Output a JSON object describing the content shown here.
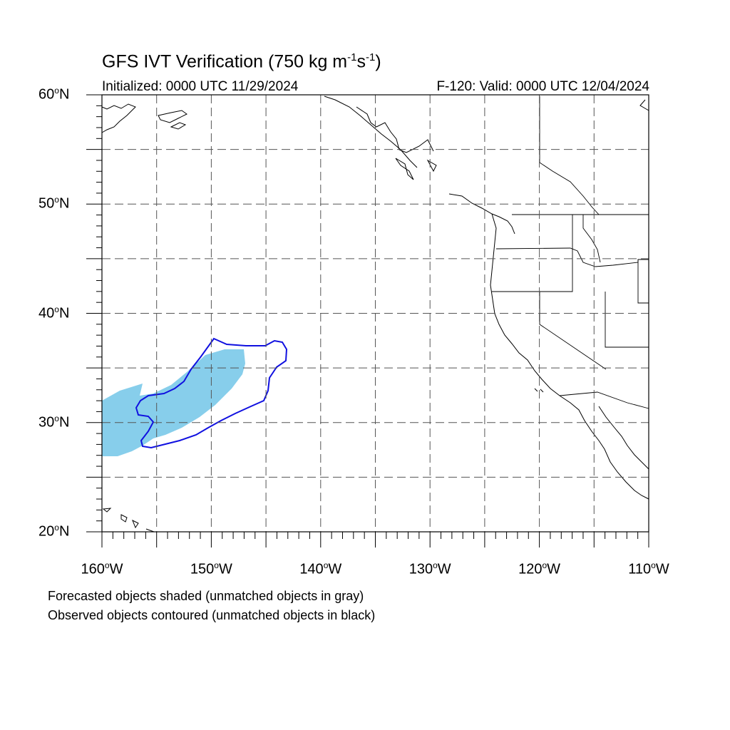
{
  "title": {
    "main": "GFS IVT Verification (750 kg m",
    "exp1": "-1",
    "mid": "s",
    "exp2": "-1",
    "end": ")"
  },
  "init_label": "Initialized: 0000 UTC 11/29/2024",
  "valid_label": "F-120: Valid: 0000 UTC 12/04/2024",
  "lat_labels": [
    "60",
    "50",
    "40",
    "30",
    "20"
  ],
  "lat_suffix": "N",
  "lon_labels": [
    "160",
    "150",
    "140",
    "130",
    "120",
    "110"
  ],
  "lon_suffix": "W",
  "legend_notes": [
    "Forecasted objects shaded (unmatched objects in gray)",
    "Observed objects contoured (unmatched objects in black)"
  ],
  "colors": {
    "forecast_fill": "#87ceeb",
    "observed_contour": "#1010e0",
    "coastline": "#000000",
    "gridline": "#555555"
  },
  "map_extent": {
    "lon_min": -160,
    "lon_max": -110,
    "lat_min": 20,
    "lat_max": 60
  },
  "grid_interval_deg": 5
}
